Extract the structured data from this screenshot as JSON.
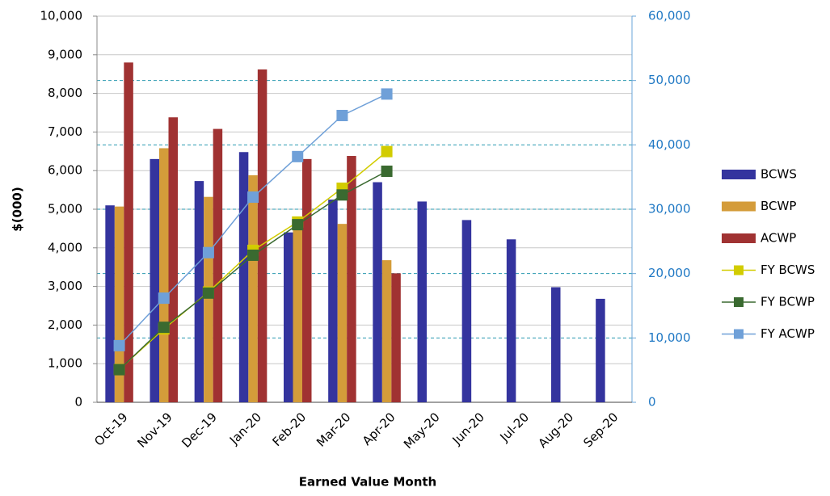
{
  "chart_data": {
    "type": "bar_line",
    "x_label": "Earned Value Month",
    "y_label": "$(000)",
    "categories": [
      "Oct-19",
      "Nov-19",
      "Dec-19",
      "Jan-20",
      "Feb-20",
      "Mar-20",
      "Apr-20",
      "May-20",
      "Jun-20",
      "Jul-20",
      "Aug-20",
      "Sep-20"
    ],
    "series": [
      {
        "name": "BCWS",
        "type": "bar",
        "color": "#34349e",
        "values": [
          5100,
          6300,
          5730,
          6480,
          4400,
          5250,
          5700,
          5200,
          4720,
          4220,
          2980,
          2680
        ]
      },
      {
        "name": "BCWP",
        "type": "bar",
        "color": "#d49c3a",
        "values": [
          5070,
          6580,
          5320,
          5880,
          4750,
          4620,
          3680,
          null,
          null,
          null,
          null,
          null
        ]
      },
      {
        "name": "ACWP",
        "type": "bar",
        "color": "#a03232",
        "values": [
          8800,
          7380,
          7080,
          8620,
          6300,
          6380,
          3340,
          null,
          null,
          null,
          null,
          null
        ]
      },
      {
        "name": "FY BCWS",
        "type": "line",
        "axis": "y2",
        "color": "#d2cc00",
        "values": [
          5100,
          11400,
          17130,
          23610,
          28010,
          33260,
          38960,
          null,
          null,
          null,
          null,
          null
        ]
      },
      {
        "name": "FY BCWP",
        "type": "line",
        "axis": "y2",
        "color": "#3a6a30",
        "values": [
          5070,
          11650,
          16970,
          22850,
          27600,
          32220,
          35900,
          null,
          null,
          null,
          null,
          null
        ]
      },
      {
        "name": "FY ACWP",
        "type": "line",
        "axis": "y2",
        "color": "#6fa0d8",
        "values": [
          8800,
          16180,
          23260,
          31880,
          38180,
          44560,
          47900,
          null,
          null,
          null,
          null,
          null
        ]
      }
    ],
    "ylim": [
      0,
      10000
    ],
    "yticks": [
      0,
      {
        "value": 1000,
        "label": "1,000"
      },
      {
        "value": 2000,
        "label": "2,000"
      },
      {
        "value": 3000,
        "label": "3,000"
      },
      {
        "value": 4000,
        "label": "4,000"
      },
      {
        "value": 5000,
        "label": "5,000"
      },
      {
        "value": 6000,
        "label": "6,000"
      },
      {
        "value": 7000,
        "label": "7,000"
      },
      {
        "value": 8000,
        "label": "8,000"
      },
      {
        "value": 9000,
        "label": "9,000"
      },
      {
        "value": 10000,
        "label": "10,000"
      }
    ],
    "y2lim": [
      0,
      60000
    ],
    "y2ticks": [
      0,
      {
        "value": 10000,
        "label": "10,000"
      },
      {
        "value": 20000,
        "label": "20,000"
      },
      {
        "value": 30000,
        "label": "30,000"
      },
      {
        "value": 40000,
        "label": "40,000"
      },
      {
        "value": 50000,
        "label": "50,000"
      },
      {
        "value": 60000,
        "label": "60,000"
      }
    ],
    "grid": true,
    "legend": "right"
  }
}
